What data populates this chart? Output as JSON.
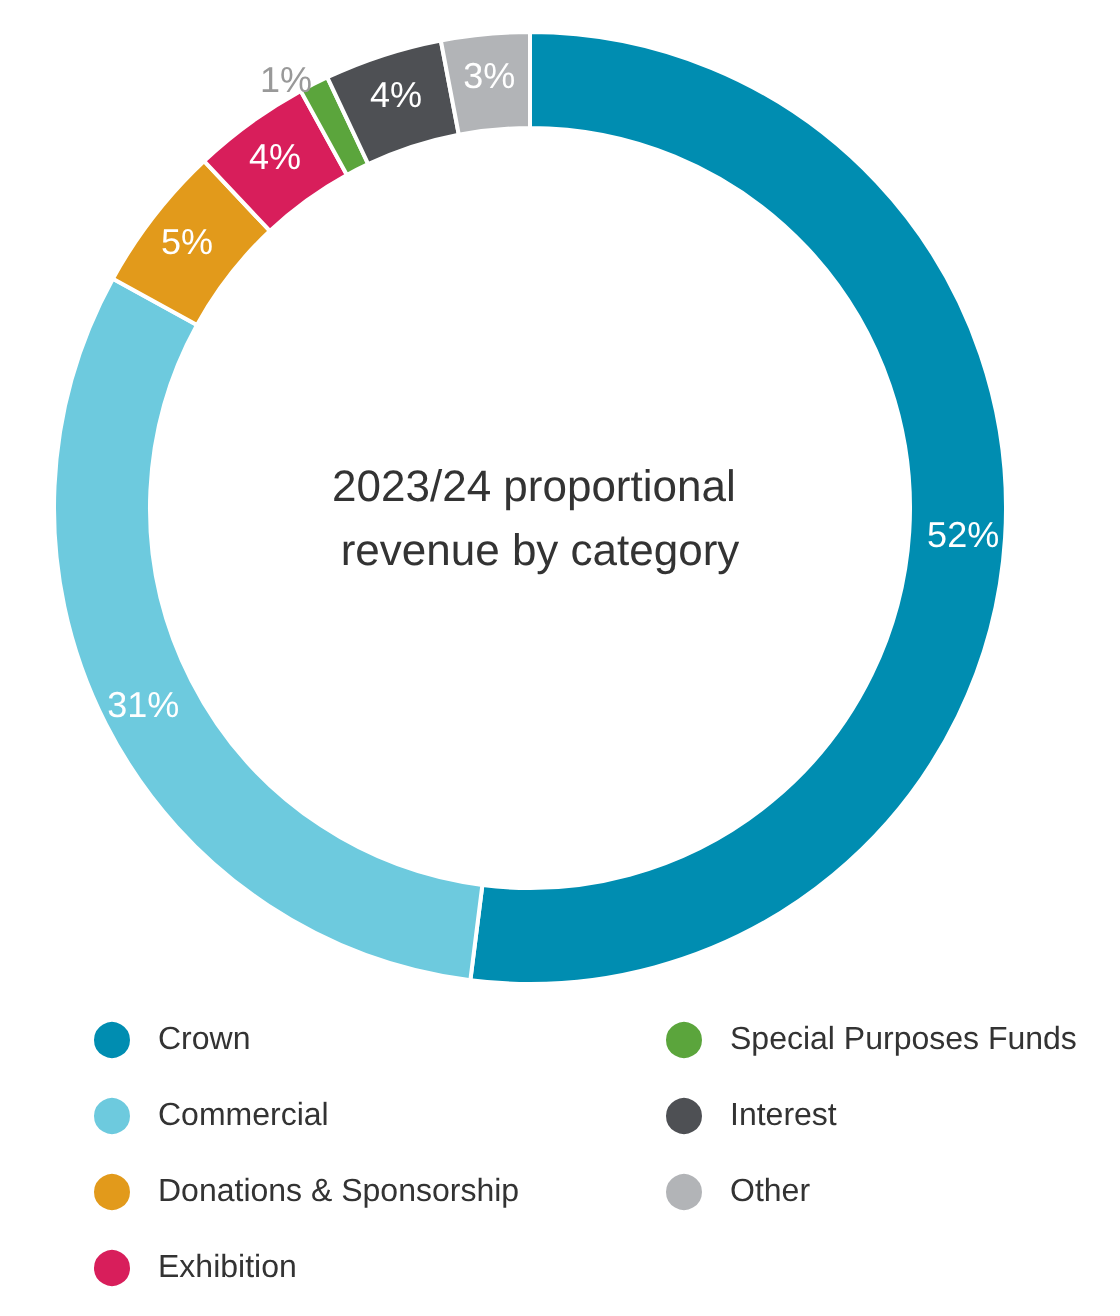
{
  "chart_data": {
    "type": "donut",
    "title": "2023/24 proportional revenue by category",
    "categories": [
      "Crown",
      "Commercial",
      "Donations & Sponsorship",
      "Exhibition",
      "Special Purposes Funds",
      "Interest",
      "Other"
    ],
    "values": [
      52,
      31,
      5,
      4,
      1,
      4,
      3
    ],
    "colors": [
      "#008db1",
      "#6dcade",
      "#e29a1b",
      "#d81e5b",
      "#5ba53c",
      "#4e5054",
      "#b2b4b7"
    ],
    "value_labels": [
      "52%",
      "31%",
      "5%",
      "4%",
      "1%",
      "4%",
      "3%"
    ],
    "legend": "bottom"
  }
}
